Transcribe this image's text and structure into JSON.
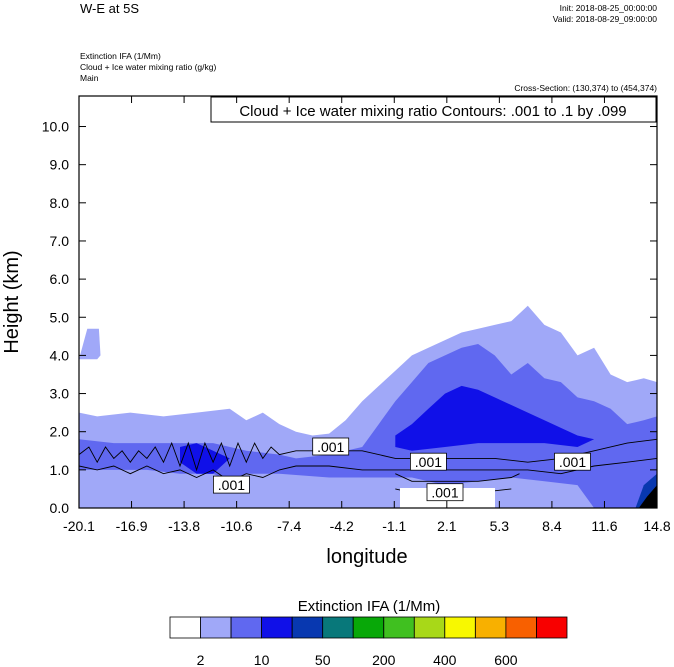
{
  "header": {
    "title": "W-E at 5S",
    "init": "Init: 2018-08-25_00:00:00",
    "valid": "Valid: 2018-08-29_09:00:00",
    "field1": "Extinction IFA   (1/Mm)",
    "field2": "Cloud + Ice water mixing ratio   (g/kg)",
    "field3": "Main",
    "cross_section": "Cross-Section: (130,374) to (454,374)"
  },
  "chart_data": {
    "type": "heatmap",
    "title": "W-E at 5S",
    "contour_label": "Cloud + Ice water mixing ratio Contours: .001 to .1 by .099",
    "xlabel": "longitude",
    "ylabel": "Height (km)",
    "xlim": [
      -20.1,
      14.8
    ],
    "ylim": [
      0,
      10.8
    ],
    "x_ticks": [
      "-20.1",
      "-16.9",
      "-13.8",
      "-10.6",
      "-7.4",
      "-4.2",
      "-1.1",
      "2.1",
      "5.3",
      "8.4",
      "11.6",
      "14.8"
    ],
    "y_ticks": [
      "0.0",
      "1.0",
      "2.0",
      "3.0",
      "4.0",
      "5.0",
      "6.0",
      "7.0",
      "8.0",
      "9.0",
      "10.0"
    ],
    "contour_value_labels": [
      {
        "text": ".001",
        "lon": -10.9,
        "height": 0.6
      },
      {
        "text": ".001",
        "lon": -4.9,
        "height": 1.6
      },
      {
        "text": ".001",
        "lon": 1.0,
        "height": 1.2
      },
      {
        "text": ".001",
        "lon": 2.0,
        "height": 0.4
      },
      {
        "text": ".001",
        "lon": 9.7,
        "height": 1.2
      }
    ],
    "colorbar": {
      "title": "Extinction IFA  (1/Mm)",
      "colors": [
        "#ffffff",
        "#a0a8f8",
        "#6068f0",
        "#1010e8",
        "#0838b0",
        "#08787a",
        "#08a808",
        "#40c020",
        "#a8d818",
        "#f8f800",
        "#f8b000",
        "#f86000",
        "#f80000"
      ],
      "labels": [
        "2",
        "10",
        "50",
        "200",
        "400",
        "600"
      ]
    },
    "regions": [
      {
        "level": 1,
        "color": "#a0a8f8",
        "points": [
          [
            -20.1,
            2.5
          ],
          [
            -19,
            2.4
          ],
          [
            -17,
            2.5
          ],
          [
            -15,
            2.4
          ],
          [
            -13,
            2.5
          ],
          [
            -11,
            2.6
          ],
          [
            -10,
            2.3
          ],
          [
            -9,
            2.5
          ],
          [
            -8,
            2.2
          ],
          [
            -7,
            2.0
          ],
          [
            -6,
            1.9
          ],
          [
            -5,
            1.95
          ],
          [
            -4,
            2.3
          ],
          [
            -3,
            2.8
          ],
          [
            -2,
            3.2
          ],
          [
            -1,
            3.6
          ],
          [
            0,
            4.0
          ],
          [
            1,
            4.2
          ],
          [
            2,
            4.4
          ],
          [
            3,
            4.6
          ],
          [
            4,
            4.7
          ],
          [
            5,
            4.8
          ],
          [
            6,
            4.9
          ],
          [
            7,
            5.3
          ],
          [
            8,
            4.8
          ],
          [
            9,
            4.6
          ],
          [
            10,
            4.0
          ],
          [
            11,
            4.2
          ],
          [
            12,
            3.5
          ],
          [
            13,
            3.3
          ],
          [
            14,
            3.4
          ],
          [
            14.8,
            3.3
          ],
          [
            14.8,
            0
          ],
          [
            -20.1,
            0
          ]
        ]
      },
      {
        "level": 1,
        "color": "#a0a8f8",
        "points": [
          [
            -20.1,
            3.9
          ],
          [
            -19.6,
            4.7
          ],
          [
            -18.9,
            4.7
          ],
          [
            -18.8,
            4.0
          ],
          [
            -19.0,
            3.9
          ]
        ]
      },
      {
        "level": 2,
        "color": "#6068f0",
        "points": [
          [
            -20.1,
            1.8
          ],
          [
            -18,
            1.7
          ],
          [
            -15,
            1.7
          ],
          [
            -12,
            1.7
          ],
          [
            -10,
            1.5
          ],
          [
            -8,
            1.4
          ],
          [
            -7,
            1.3
          ],
          [
            -5,
            1.4
          ],
          [
            -3,
            1.6
          ],
          [
            -2,
            2.2
          ],
          [
            -1,
            2.8
          ],
          [
            0,
            3.3
          ],
          [
            1,
            3.8
          ],
          [
            2,
            4.0
          ],
          [
            3,
            4.2
          ],
          [
            4,
            4.3
          ],
          [
            5,
            4.0
          ],
          [
            6,
            3.5
          ],
          [
            7,
            3.8
          ],
          [
            8,
            3.4
          ],
          [
            9,
            3.3
          ],
          [
            10,
            2.9
          ],
          [
            11,
            2.8
          ],
          [
            12,
            2.6
          ],
          [
            13,
            2.2
          ],
          [
            14,
            2.3
          ],
          [
            14.8,
            2.4
          ],
          [
            14.8,
            0
          ],
          [
            11,
            0
          ],
          [
            10,
            0.6
          ],
          [
            8,
            0.7
          ],
          [
            6,
            0.8
          ],
          [
            4,
            0.7
          ],
          [
            2,
            0.6
          ],
          [
            0,
            0.8
          ],
          [
            -2,
            0.8
          ],
          [
            -5,
            0.8
          ],
          [
            -8,
            0.9
          ],
          [
            -10,
            0.9
          ],
          [
            -11,
            0.7
          ],
          [
            -12,
            0.9
          ],
          [
            -14,
            0.9
          ],
          [
            -16,
            1.0
          ],
          [
            -18,
            1.0
          ],
          [
            -20.1,
            1.0
          ]
        ]
      },
      {
        "level": 3,
        "color": "#1010e8",
        "points": [
          [
            -1,
            1.9
          ],
          [
            0,
            2.2
          ],
          [
            1,
            2.6
          ],
          [
            2,
            3.0
          ],
          [
            3,
            3.2
          ],
          [
            4,
            3.1
          ],
          [
            5,
            2.9
          ],
          [
            6,
            2.7
          ],
          [
            7,
            2.5
          ],
          [
            8,
            2.3
          ],
          [
            9,
            2.1
          ],
          [
            10,
            1.9
          ],
          [
            11,
            1.8
          ],
          [
            10,
            1.6
          ],
          [
            8,
            1.7
          ],
          [
            6,
            1.7
          ],
          [
            4,
            1.7
          ],
          [
            2,
            1.6
          ],
          [
            0,
            1.5
          ],
          [
            -1,
            1.6
          ]
        ]
      },
      {
        "level": 3,
        "color": "#1010e8",
        "points": [
          [
            -14,
            1.6
          ],
          [
            -13,
            1.7
          ],
          [
            -12,
            1.5
          ],
          [
            -11,
            1.3
          ],
          [
            -12,
            0.9
          ],
          [
            -13,
            0.9
          ],
          [
            -14,
            1.2
          ]
        ]
      },
      {
        "level": 4,
        "color": "#0838b0",
        "points": [
          [
            13.5,
            0
          ],
          [
            14,
            0.6
          ],
          [
            14.8,
            0.9
          ],
          [
            14.8,
            0
          ]
        ]
      },
      {
        "level": 5,
        "color": "#000000",
        "points": [
          [
            13.7,
            0
          ],
          [
            14.2,
            0.3
          ],
          [
            14.8,
            0.6
          ],
          [
            14.8,
            0
          ]
        ]
      }
    ]
  }
}
